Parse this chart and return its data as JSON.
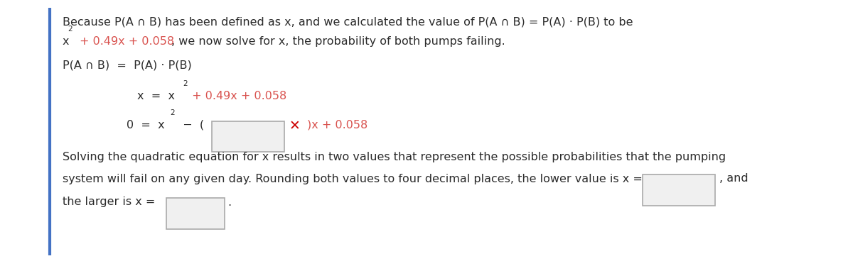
{
  "bg_color": "#ffffff",
  "border_color": "#4472c4",
  "text_color": "#2b2b2b",
  "orange_color": "#d9534f",
  "red_color": "#cc0000",
  "font_size": 11.5,
  "fig_width": 12.0,
  "fig_height": 3.75,
  "lm_fig": 0.072,
  "line1": "Because P(A ∩ B) has been defined as x, and we calculated the value of P(A ∩ B) = P(A) · P(B) to be",
  "line2_rest": ", we now solve for x, the probability of both pumps failing.",
  "line3": "P(A ∩ B)  =  P(A) · P(B)",
  "eq1_pre": "x  =  x",
  "eq1_orange": " + 0.49x + 0.058",
  "eq2_pre": "0  =  x",
  "eq2_minus_paren": "  −  (",
  "eq2_orange": ")x + 0.058",
  "para_line1": "Solving the quadratic equation for x results in two values that represent the possible probabilities that the pumping",
  "para_line2_pre": "system will fail on any given day. Rounding both values to four decimal places, the lower value is x =",
  "para_line2_post": ", and",
  "para_line3_pre": "the larger is x =",
  "para_line3_post": "."
}
